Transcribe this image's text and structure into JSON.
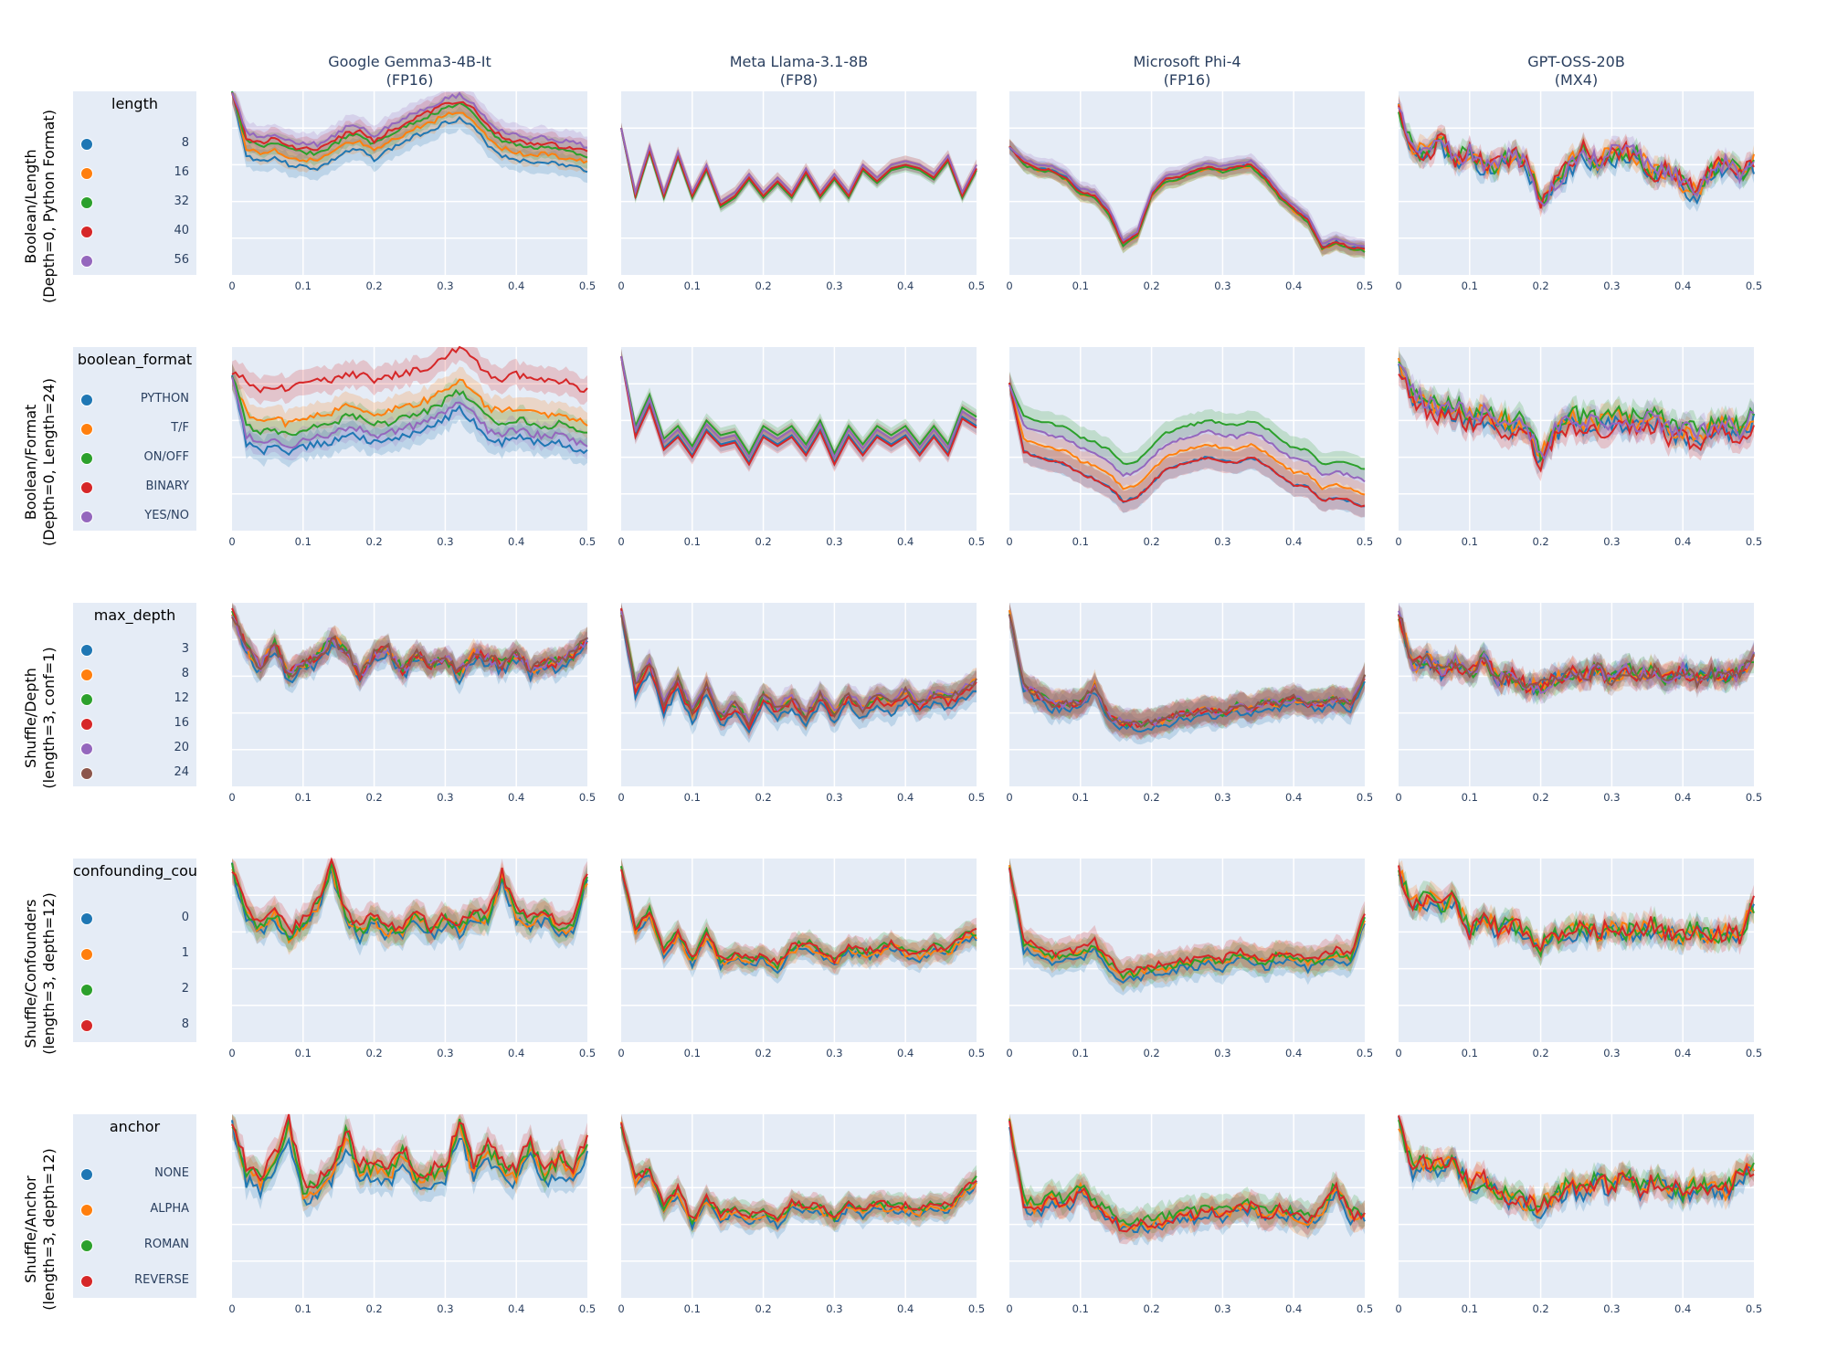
{
  "columns": [
    {
      "title": "Google Gemma3-4B-It",
      "subtitle": "(FP16)"
    },
    {
      "title": "Meta Llama-3.1-8B",
      "subtitle": "(FP8)"
    },
    {
      "title": "Microsoft Phi-4",
      "subtitle": "(FP16)"
    },
    {
      "title": "GPT-OSS-20B",
      "subtitle": "(MX4)"
    }
  ],
  "rows": [
    {
      "label_line1": "Boolean/Length",
      "label_line2": "(Depth=0, Python Format)",
      "legend_title": "length",
      "legend": [
        {
          "label": "8",
          "color": "#1f77b4"
        },
        {
          "label": "16",
          "color": "#ff7f0e"
        },
        {
          "label": "32",
          "color": "#2ca02c"
        },
        {
          "label": "40",
          "color": "#d62728"
        },
        {
          "label": "56",
          "color": "#9467bd"
        }
      ]
    },
    {
      "label_line1": "Boolean/Format",
      "label_line2": "(Depth=0, Length=24)",
      "legend_title": "boolean_format",
      "legend": [
        {
          "label": "PYTHON",
          "color": "#1f77b4"
        },
        {
          "label": "T/F",
          "color": "#ff7f0e"
        },
        {
          "label": "ON/OFF",
          "color": "#2ca02c"
        },
        {
          "label": "BINARY",
          "color": "#d62728"
        },
        {
          "label": "YES/NO",
          "color": "#9467bd"
        }
      ]
    },
    {
      "label_line1": "Shuffle/Depth",
      "label_line2": "(length=3, conf=1)",
      "legend_title": "max_depth",
      "legend": [
        {
          "label": "3",
          "color": "#1f77b4"
        },
        {
          "label": "8",
          "color": "#ff7f0e"
        },
        {
          "label": "12",
          "color": "#2ca02c"
        },
        {
          "label": "16",
          "color": "#d62728"
        },
        {
          "label": "20",
          "color": "#9467bd"
        },
        {
          "label": "24",
          "color": "#8c564b"
        }
      ]
    },
    {
      "label_line1": "Shuffle/Confounders",
      "label_line2": "(length=3, depth=12)",
      "legend_title": "confounding_count",
      "legend": [
        {
          "label": "0",
          "color": "#1f77b4"
        },
        {
          "label": "1",
          "color": "#ff7f0e"
        },
        {
          "label": "2",
          "color": "#2ca02c"
        },
        {
          "label": "8",
          "color": "#d62728"
        }
      ]
    },
    {
      "label_line1": "Shuffle/Anchor",
      "label_line2": "(length=3, depth=12)",
      "legend_title": "anchor",
      "legend": [
        {
          "label": "NONE",
          "color": "#1f77b4"
        },
        {
          "label": "ALPHA",
          "color": "#ff7f0e"
        },
        {
          "label": "ROMAN",
          "color": "#2ca02c"
        },
        {
          "label": "REVERSE",
          "color": "#d62728"
        }
      ]
    }
  ],
  "x_ticks": [
    "0",
    "0.1",
    "0.2",
    "0.3",
    "0.4",
    "0.5"
  ],
  "chart_data": {
    "type": "line",
    "layout": "5x4 facet grid, line + shaded band per series, y-axis tick labels hidden, 5 horizontal gridlines",
    "xlim": [
      0,
      0.5
    ],
    "ylim_note": "y values are normalized position within plot (0=top, 1=bottom); no y tick labels shown",
    "x": [
      0,
      0.02,
      0.04,
      0.06,
      0.08,
      0.1,
      0.12,
      0.14,
      0.16,
      0.18,
      0.2,
      0.22,
      0.24,
      0.26,
      0.28,
      0.3,
      0.32,
      0.34,
      0.36,
      0.38,
      0.4,
      0.42,
      0.44,
      0.46,
      0.48,
      0.5
    ],
    "panels": [
      [
        {
          "base": [
            0.0,
            0.25,
            0.28,
            0.26,
            0.3,
            0.31,
            0.32,
            0.28,
            0.23,
            0.22,
            0.27,
            0.22,
            0.18,
            0.14,
            0.11,
            0.07,
            0.05,
            0.1,
            0.19,
            0.25,
            0.27,
            0.29,
            0.28,
            0.3,
            0.31,
            0.33
          ],
          "offsets": [
            0.1,
            0.06,
            0.02,
            0.0,
            -0.03
          ],
          "band": 0.06,
          "noise": 0.012
        },
        {
          "base": [
            0.2,
            0.55,
            0.3,
            0.55,
            0.33,
            0.55,
            0.4,
            0.6,
            0.55,
            0.45,
            0.55,
            0.47,
            0.55,
            0.42,
            0.55,
            0.45,
            0.55,
            0.4,
            0.47,
            0.4,
            0.38,
            0.4,
            0.45,
            0.35,
            0.55,
            0.4
          ],
          "offsets": [
            0.02,
            0.0,
            0.03,
            0.02,
            0.0
          ],
          "band": 0.03,
          "noise": 0.0
        },
        {
          "base": [
            0.3,
            0.39,
            0.42,
            0.43,
            0.47,
            0.55,
            0.57,
            0.66,
            0.83,
            0.78,
            0.56,
            0.48,
            0.47,
            0.43,
            0.41,
            0.43,
            0.41,
            0.4,
            0.47,
            0.57,
            0.64,
            0.7,
            0.85,
            0.82,
            0.85,
            0.86
          ],
          "offsets": [
            0.0,
            0.01,
            0.01,
            0.0,
            -0.02
          ],
          "band": 0.04,
          "noise": 0.006
        },
        {
          "base": [
            0.1,
            0.3,
            0.35,
            0.25,
            0.38,
            0.32,
            0.4,
            0.4,
            0.35,
            0.38,
            0.6,
            0.5,
            0.4,
            0.32,
            0.38,
            0.34,
            0.32,
            0.36,
            0.45,
            0.42,
            0.5,
            0.55,
            0.42,
            0.38,
            0.45,
            0.38
          ],
          "offsets": [
            0.03,
            0.0,
            0.0,
            0.0,
            0.0
          ],
          "band": 0.05,
          "noise": 0.05
        }
      ],
      [
        {
          "base": [
            0.15,
            0.3,
            0.35,
            0.33,
            0.36,
            0.32,
            0.31,
            0.3,
            0.26,
            0.27,
            0.3,
            0.29,
            0.26,
            0.25,
            0.22,
            0.17,
            0.12,
            0.19,
            0.27,
            0.3,
            0.27,
            0.29,
            0.31,
            0.3,
            0.33,
            0.36
          ],
          "offsets": [
            0.22,
            0.06,
            0.12,
            -0.12,
            0.18
          ],
          "band": 0.07,
          "noise": 0.02
        },
        {
          "base": [
            0.05,
            0.45,
            0.28,
            0.52,
            0.45,
            0.56,
            0.42,
            0.5,
            0.48,
            0.6,
            0.45,
            0.5,
            0.45,
            0.55,
            0.42,
            0.6,
            0.45,
            0.55,
            0.45,
            0.5,
            0.45,
            0.55,
            0.45,
            0.55,
            0.35,
            0.4
          ],
          "offsets": [
            0.03,
            0.0,
            -0.02,
            0.04,
            0.0
          ],
          "band": 0.04,
          "noise": 0.0
        },
        {
          "base": [
            0.2,
            0.45,
            0.48,
            0.5,
            0.52,
            0.57,
            0.6,
            0.64,
            0.72,
            0.7,
            0.62,
            0.55,
            0.52,
            0.5,
            0.48,
            0.5,
            0.51,
            0.48,
            0.52,
            0.58,
            0.63,
            0.64,
            0.72,
            0.7,
            0.72,
            0.75
          ],
          "offsets": [
            0.12,
            0.05,
            -0.08,
            0.12,
            -0.02
          ],
          "band": 0.06,
          "noise": 0.008
        },
        {
          "base": [
            0.1,
            0.25,
            0.3,
            0.35,
            0.33,
            0.38,
            0.36,
            0.4,
            0.42,
            0.42,
            0.6,
            0.45,
            0.38,
            0.4,
            0.42,
            0.4,
            0.38,
            0.42,
            0.38,
            0.45,
            0.45,
            0.48,
            0.45,
            0.42,
            0.45,
            0.38
          ],
          "offsets": [
            0.03,
            0.0,
            -0.02,
            0.04,
            0.0
          ],
          "band": 0.06,
          "noise": 0.05
        }
      ],
      [
        {
          "base": [
            0.05,
            0.25,
            0.35,
            0.22,
            0.4,
            0.33,
            0.3,
            0.2,
            0.25,
            0.4,
            0.28,
            0.25,
            0.37,
            0.28,
            0.34,
            0.3,
            0.38,
            0.28,
            0.3,
            0.34,
            0.28,
            0.36,
            0.33,
            0.32,
            0.28,
            0.2
          ],
          "offsets": [
            0.03,
            0.0,
            0.0,
            0.0,
            0.0,
            0.0
          ],
          "band": 0.06,
          "noise": 0.03
        },
        {
          "base": [
            0.05,
            0.45,
            0.32,
            0.55,
            0.42,
            0.6,
            0.45,
            0.62,
            0.55,
            0.65,
            0.5,
            0.58,
            0.52,
            0.62,
            0.5,
            0.6,
            0.5,
            0.58,
            0.5,
            0.55,
            0.48,
            0.55,
            0.5,
            0.52,
            0.48,
            0.42
          ],
          "offsets": [
            0.05,
            0.0,
            0.0,
            0.02,
            -0.01,
            0.0
          ],
          "band": 0.06,
          "noise": 0.02
        },
        {
          "base": [
            0.05,
            0.45,
            0.5,
            0.55,
            0.55,
            0.55,
            0.45,
            0.62,
            0.65,
            0.66,
            0.65,
            0.64,
            0.6,
            0.6,
            0.58,
            0.6,
            0.56,
            0.58,
            0.54,
            0.55,
            0.52,
            0.55,
            0.55,
            0.52,
            0.55,
            0.4
          ],
          "offsets": [
            0.03,
            0.0,
            0.0,
            0.0,
            0.0,
            0.0
          ],
          "band": 0.07,
          "noise": 0.02
        },
        {
          "base": [
            0.05,
            0.35,
            0.3,
            0.38,
            0.32,
            0.4,
            0.3,
            0.42,
            0.4,
            0.45,
            0.46,
            0.42,
            0.38,
            0.4,
            0.36,
            0.42,
            0.36,
            0.4,
            0.36,
            0.42,
            0.36,
            0.42,
            0.38,
            0.4,
            0.38,
            0.3
          ],
          "offsets": [
            0.0,
            0.0,
            0.0,
            0.0,
            0.0,
            0.0
          ],
          "band": 0.06,
          "noise": 0.04
        }
      ],
      [
        {
          "base": [
            0.05,
            0.3,
            0.38,
            0.3,
            0.42,
            0.35,
            0.25,
            0.05,
            0.3,
            0.4,
            0.32,
            0.4,
            0.38,
            0.3,
            0.4,
            0.32,
            0.38,
            0.3,
            0.32,
            0.1,
            0.3,
            0.35,
            0.3,
            0.4,
            0.35,
            0.1
          ],
          "offsets": [
            0.03,
            0.01,
            0.0,
            -0.02
          ],
          "band": 0.07,
          "noise": 0.03
        },
        {
          "base": [
            0.05,
            0.38,
            0.28,
            0.5,
            0.4,
            0.55,
            0.4,
            0.55,
            0.52,
            0.55,
            0.52,
            0.58,
            0.48,
            0.45,
            0.5,
            0.55,
            0.48,
            0.5,
            0.5,
            0.45,
            0.5,
            0.52,
            0.48,
            0.5,
            0.42,
            0.4
          ],
          "offsets": [
            0.03,
            0.02,
            0.0,
            0.0
          ],
          "band": 0.06,
          "noise": 0.02
        },
        {
          "base": [
            0.05,
            0.45,
            0.48,
            0.52,
            0.5,
            0.5,
            0.45,
            0.55,
            0.62,
            0.6,
            0.58,
            0.58,
            0.55,
            0.55,
            0.52,
            0.55,
            0.5,
            0.52,
            0.55,
            0.5,
            0.52,
            0.55,
            0.52,
            0.5,
            0.52,
            0.3
          ],
          "offsets": [
            0.05,
            0.02,
            0.02,
            0.0
          ],
          "band": 0.07,
          "noise": 0.02
        },
        {
          "base": [
            0.05,
            0.25,
            0.22,
            0.25,
            0.22,
            0.4,
            0.3,
            0.38,
            0.35,
            0.42,
            0.48,
            0.42,
            0.4,
            0.38,
            0.42,
            0.36,
            0.4,
            0.38,
            0.36,
            0.4,
            0.42,
            0.38,
            0.42,
            0.4,
            0.42,
            0.25
          ],
          "offsets": [
            0.02,
            0.0,
            0.0,
            0.0
          ],
          "band": 0.06,
          "noise": 0.05
        }
      ],
      [
        {
          "base": [
            0.05,
            0.3,
            0.35,
            0.25,
            0.05,
            0.4,
            0.38,
            0.3,
            0.1,
            0.3,
            0.28,
            0.32,
            0.2,
            0.35,
            0.32,
            0.3,
            0.05,
            0.3,
            0.18,
            0.28,
            0.32,
            0.15,
            0.32,
            0.25,
            0.3,
            0.15
          ],
          "offsets": [
            0.06,
            0.02,
            0.0,
            -0.02
          ],
          "band": 0.07,
          "noise": 0.04
        },
        {
          "base": [
            0.05,
            0.35,
            0.3,
            0.5,
            0.4,
            0.58,
            0.45,
            0.55,
            0.5,
            0.56,
            0.52,
            0.58,
            0.48,
            0.5,
            0.5,
            0.56,
            0.48,
            0.52,
            0.48,
            0.5,
            0.5,
            0.52,
            0.48,
            0.5,
            0.42,
            0.35
          ],
          "offsets": [
            0.03,
            0.02,
            0.0,
            0.0
          ],
          "band": 0.06,
          "noise": 0.02
        },
        {
          "base": [
            0.05,
            0.48,
            0.52,
            0.45,
            0.5,
            0.4,
            0.5,
            0.55,
            0.62,
            0.6,
            0.6,
            0.58,
            0.55,
            0.55,
            0.52,
            0.55,
            0.52,
            0.5,
            0.55,
            0.52,
            0.55,
            0.58,
            0.52,
            0.4,
            0.55,
            0.55
          ],
          "offsets": [
            0.02,
            0.0,
            -0.02,
            0.0
          ],
          "band": 0.07,
          "noise": 0.03
        },
        {
          "base": [
            0.05,
            0.3,
            0.25,
            0.28,
            0.25,
            0.38,
            0.35,
            0.42,
            0.45,
            0.48,
            0.5,
            0.45,
            0.38,
            0.42,
            0.35,
            0.4,
            0.32,
            0.42,
            0.36,
            0.4,
            0.42,
            0.38,
            0.4,
            0.42,
            0.32,
            0.3
          ],
          "offsets": [
            0.02,
            0.0,
            0.0,
            0.0
          ],
          "band": 0.06,
          "noise": 0.05
        }
      ]
    ]
  }
}
